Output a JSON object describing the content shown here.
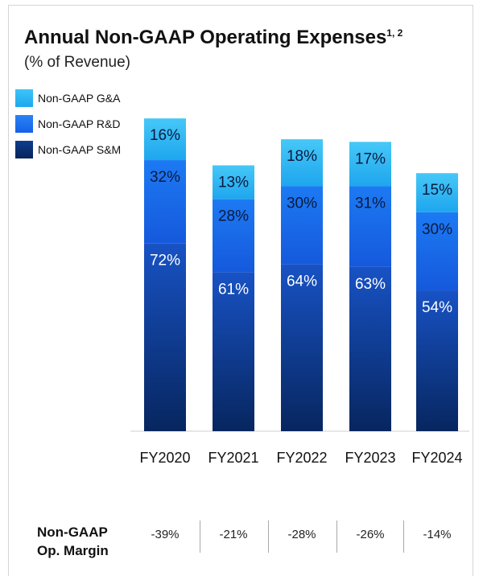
{
  "title": "Annual Non-GAAP Operating Expenses",
  "title_footnote": "1, 2",
  "subtitle": "(% of Revenue)",
  "legend": [
    {
      "label": "Non-GAAP G&A",
      "color": "#27b4f0"
    },
    {
      "label": "Non-GAAP R&D",
      "color": "#1a6cf0"
    },
    {
      "label": "Non-GAAP S&M",
      "color": "#0b2f72"
    }
  ],
  "chart_data": {
    "type": "bar",
    "stacked": true,
    "categories": [
      "FY2020",
      "FY2021",
      "FY2022",
      "FY2023",
      "FY2024"
    ],
    "series": [
      {
        "name": "Non-GAAP S&M",
        "values": [
          72,
          61,
          64,
          63,
          54
        ],
        "labels": [
          "72%",
          "61%",
          "64%",
          "63%",
          "54%"
        ]
      },
      {
        "name": "Non-GAAP R&D",
        "values": [
          32,
          28,
          30,
          31,
          30
        ],
        "labels": [
          "32%",
          "28%",
          "30%",
          "31%",
          "30%"
        ]
      },
      {
        "name": "Non-GAAP G&A",
        "values": [
          16,
          13,
          18,
          17,
          15
        ],
        "labels": [
          "16%",
          "13%",
          "18%",
          "17%",
          "15%"
        ]
      }
    ],
    "ylim": [
      0,
      120
    ],
    "grid": false,
    "legend_position": "top-left"
  },
  "op_margin": {
    "label_line1": "Non-GAAP",
    "label_line2": "Op. Margin",
    "values": [
      "-39%",
      "-21%",
      "-28%",
      "-26%",
      "-14%"
    ]
  }
}
